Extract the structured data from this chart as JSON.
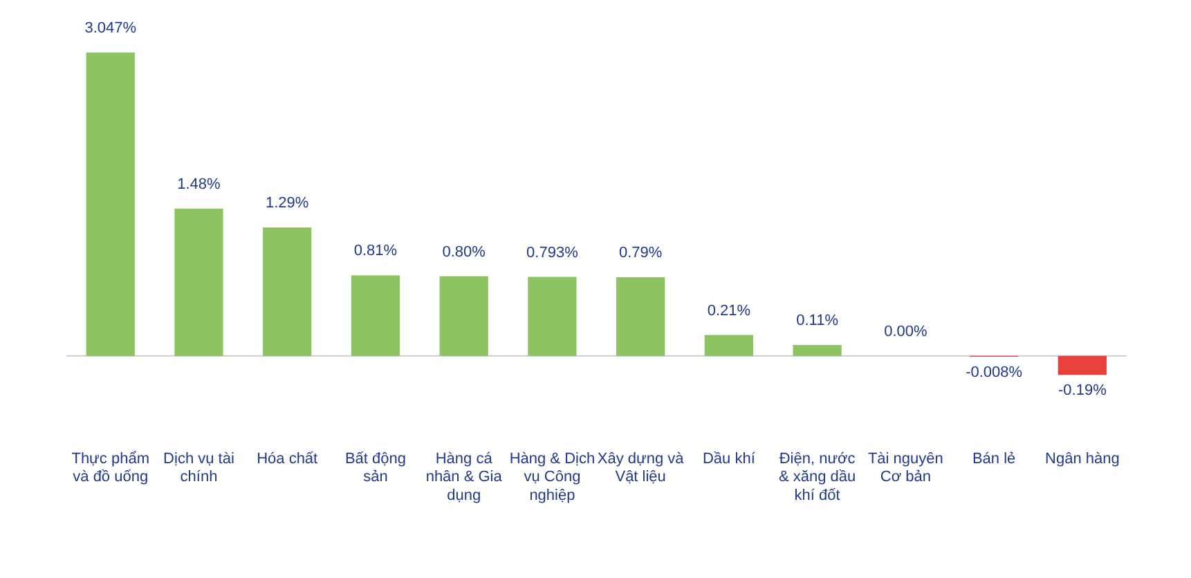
{
  "chart_data": {
    "type": "bar",
    "categories": [
      "Thực phẩm và đồ uống",
      "Dịch vụ tài chính",
      "Hóa chất",
      "Bất động sản",
      "Hàng cá nhân & Gia dụng",
      "Hàng & Dịch vụ Công nghiệp",
      "Xây dựng và Vật liệu",
      "Dầu khí",
      "Điện, nước & xăng dầu khí đốt",
      "Tài nguyên Cơ bản",
      "Bán lẻ",
      "Ngân hàng"
    ],
    "values": [
      3.047,
      1.48,
      1.29,
      0.81,
      0.8,
      0.793,
      0.79,
      0.21,
      0.11,
      0.0,
      -0.008,
      -0.19
    ],
    "value_labels": [
      "3.047%",
      "1.48%",
      "1.29%",
      "0.81%",
      "0.80%",
      "0.793%",
      "0.79%",
      "0.21%",
      "0.11%",
      "0.00%",
      "-0.008%",
      "-0.19%"
    ],
    "colors": [
      "#8cc461",
      "#8cc461",
      "#8cc461",
      "#8cc461",
      "#8cc461",
      "#8cc461",
      "#8cc461",
      "#8cc461",
      "#8cc461",
      "#8cc461",
      "#e8403a",
      "#e8403a"
    ],
    "tick_labels": "x",
    "grid": false,
    "legend": false
  }
}
